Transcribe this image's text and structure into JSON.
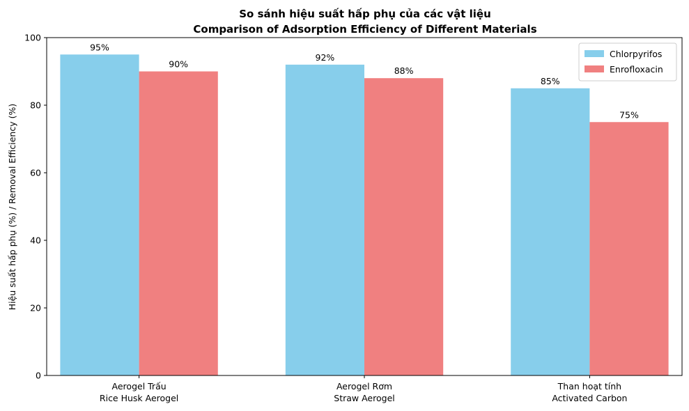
{
  "chart_data": {
    "type": "bar",
    "title": "So sánh hiệu suất hấp phụ của các vật liệu",
    "subtitle": "Comparison of Adsorption Efficiency of Different Materials",
    "ylabel": "Hiệu suất hấp phụ (%) / Removal Efficiency (%)",
    "xlabel": "",
    "ylim": [
      0,
      100
    ],
    "yticks": [
      0,
      20,
      40,
      60,
      80,
      100
    ],
    "grid": false,
    "legend_position": "top-right",
    "categories": [
      [
        "Aerogel Trấu",
        "Rice Husk Aerogel"
      ],
      [
        "Aerogel Rơm",
        "Straw Aerogel"
      ],
      [
        "Than hoạt tính",
        "Activated Carbon"
      ]
    ],
    "series": [
      {
        "name": "Chlorpyrifos",
        "color": "#87ceeb",
        "values": [
          95,
          92,
          85
        ],
        "labels": [
          "95%",
          "92%",
          "85%"
        ]
      },
      {
        "name": "Enrofloxacin",
        "color": "#f08080",
        "values": [
          90,
          88,
          75
        ],
        "labels": [
          "90%",
          "88%",
          "75%"
        ]
      }
    ]
  }
}
